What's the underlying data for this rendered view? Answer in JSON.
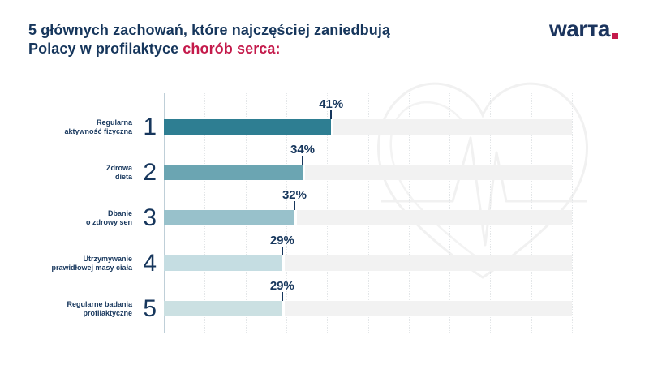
{
  "header": {
    "title_line1": "5 głównych zachowań, które najczęściej zaniedbują",
    "title_line2_prefix": "Polacy w profilaktyce ",
    "title_line2_accent": "chorób serca:",
    "logo_text": "warта",
    "colors": {
      "navy": "#16365c",
      "accent_red": "#c41a4b"
    }
  },
  "chart_data": {
    "type": "bar",
    "orientation": "horizontal",
    "categories": [
      "Regularna aktywność fizyczna",
      "Zdrowa dieta",
      "Dbanie o zdrowy sen",
      "Utrzymywanie prawidłowej masy ciała",
      "Regularne badania profilaktyczne"
    ],
    "category_lines": [
      [
        "Regularna",
        "aktywność fizyczna"
      ],
      [
        "Zdrowa",
        "dieta"
      ],
      [
        "Dbanie",
        "o zdrowy sen"
      ],
      [
        "Utrzymywanie",
        "prawidłowej masy ciała"
      ],
      [
        "Regularne badania",
        "profilaktyczne"
      ]
    ],
    "ranks": [
      "1",
      "2",
      "3",
      "4",
      "5"
    ],
    "values": [
      41,
      34,
      32,
      29,
      29
    ],
    "value_labels": [
      "41%",
      "34%",
      "32%",
      "29%",
      "29%"
    ],
    "unit": "%",
    "xlim": [
      0,
      100
    ],
    "gridline_step_percent": 10,
    "grid_style": "dotted-vertical",
    "bar_colors": [
      "#2e7e92",
      "#6ba5b2",
      "#98c1cb",
      "#c5dde2",
      "#cbe0e2"
    ],
    "track_color": "#f2f2f2",
    "label_color": "#16365c"
  },
  "watermark": {
    "name": "heart-ekg-outline",
    "color": "#f1f1f1"
  }
}
